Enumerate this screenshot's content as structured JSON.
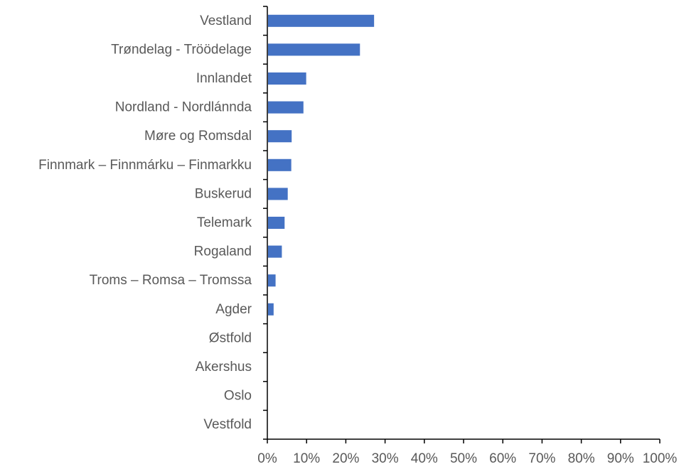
{
  "chart_data": {
    "type": "bar",
    "orientation": "horizontal",
    "categories": [
      "Vestland",
      "Trøndelag - Tröödelage",
      "Innlandet",
      "Nordland - Nordlánnda",
      "Møre og Romsdal",
      "Finnmark – Finnmárku – Finmarkku",
      "Buskerud",
      "Telemark",
      "Rogaland",
      "Troms – Romsa – Tromssa",
      "Agder",
      "Østfold",
      "Akershus",
      "Oslo",
      "Vestfold"
    ],
    "values": [
      27.2,
      23.6,
      9.9,
      9.2,
      6.2,
      6.1,
      5.2,
      4.4,
      3.7,
      2.1,
      1.6,
      0,
      0,
      0,
      0
    ],
    "xlim": [
      0,
      100
    ],
    "x_ticks": [
      "0%",
      "10%",
      "20%",
      "30%",
      "40%",
      "50%",
      "60%",
      "70%",
      "80%",
      "90%",
      "100%"
    ],
    "grid": false,
    "bar_color": "#4472C4",
    "axis_color": "#000000",
    "title": "",
    "xlabel": "",
    "ylabel": ""
  }
}
